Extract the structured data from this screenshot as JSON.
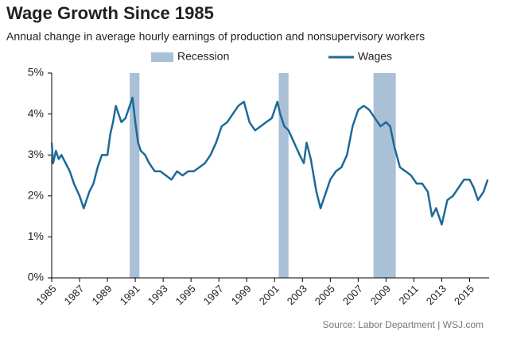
{
  "chart_data": {
    "type": "line",
    "title": "Wage Growth Since 1985",
    "subtitle": "Annual change in average hourly earnings of production and nonsupervisory workers",
    "source": "Source: Labor Department  |  WSJ.com",
    "xlim": [
      1985,
      2016.4
    ],
    "xticks": [
      1985,
      1987,
      1989,
      1991,
      1993,
      1995,
      1997,
      1999,
      2001,
      2003,
      2005,
      2007,
      2009,
      2011,
      2013,
      2015
    ],
    "ylim": [
      0,
      5
    ],
    "yticks": [
      {
        "value": 0,
        "label": "0%"
      },
      {
        "value": 1,
        "label": "1%"
      },
      {
        "value": 2,
        "label": "2%"
      },
      {
        "value": 3,
        "label": "3%"
      },
      {
        "value": 4,
        "label": "4%"
      },
      {
        "value": 5,
        "label": "5%"
      }
    ],
    "grid": false,
    "recessions": {
      "name": "Recession",
      "color": "#a9c0d7",
      "spans": [
        [
          1990.6,
          1991.3
        ],
        [
          2001.3,
          2002.0
        ],
        [
          2008.1,
          2009.7
        ]
      ]
    },
    "series": [
      {
        "name": "Wages",
        "color": "#1d6a98",
        "x": [
          1985,
          1985.1,
          1985.3,
          1985.5,
          1985.7,
          1986,
          1986.3,
          1986.6,
          1987,
          1987.3,
          1987.5,
          1987.7,
          1988,
          1988.3,
          1988.6,
          1989,
          1989.2,
          1989.4,
          1989.6,
          1990,
          1990.3,
          1990.6,
          1990.8,
          1991,
          1991.2,
          1991.4,
          1991.7,
          1992,
          1992.4,
          1992.8,
          1993.2,
          1993.6,
          1994,
          1994.4,
          1994.8,
          1995.2,
          1995.6,
          1996,
          1996.4,
          1996.8,
          1997.2,
          1997.6,
          1998,
          1998.4,
          1998.8,
          1999.2,
          1999.6,
          2000,
          2000.4,
          2000.8,
          2001.2,
          2001.4,
          2001.7,
          2002,
          2002.4,
          2002.8,
          2003.1,
          2003.3,
          2003.6,
          2004,
          2004.3,
          2004.6,
          2005,
          2005.4,
          2005.8,
          2006.2,
          2006.6,
          2007,
          2007.4,
          2007.8,
          2008.2,
          2008.6,
          2009,
          2009.3,
          2009.6,
          2010,
          2010.4,
          2010.8,
          2011.2,
          2011.6,
          2012,
          2012.3,
          2012.6,
          2013,
          2013.4,
          2013.8,
          2014.2,
          2014.6,
          2015,
          2015.3,
          2015.6,
          2016,
          2016.3
        ],
        "values": [
          3.3,
          2.8,
          3.1,
          2.9,
          3.0,
          2.8,
          2.6,
          2.3,
          2.0,
          1.7,
          1.9,
          2.1,
          2.3,
          2.7,
          3.0,
          3.0,
          3.5,
          3.8,
          4.2,
          3.8,
          3.9,
          4.2,
          4.4,
          3.8,
          3.3,
          3.1,
          3.0,
          2.8,
          2.6,
          2.6,
          2.5,
          2.4,
          2.6,
          2.5,
          2.6,
          2.6,
          2.7,
          2.8,
          3.0,
          3.3,
          3.7,
          3.8,
          4.0,
          4.2,
          4.3,
          3.8,
          3.6,
          3.7,
          3.8,
          3.9,
          4.3,
          4.0,
          3.7,
          3.6,
          3.3,
          3.0,
          2.8,
          3.3,
          2.9,
          2.1,
          1.7,
          2.0,
          2.4,
          2.6,
          2.7,
          3.0,
          3.7,
          4.1,
          4.2,
          4.1,
          3.9,
          3.7,
          3.8,
          3.7,
          3.2,
          2.7,
          2.6,
          2.5,
          2.3,
          2.3,
          2.1,
          1.5,
          1.7,
          1.3,
          1.9,
          2.0,
          2.2,
          2.4,
          2.4,
          2.2,
          1.9,
          2.1,
          2.4
        ]
      }
    ]
  }
}
